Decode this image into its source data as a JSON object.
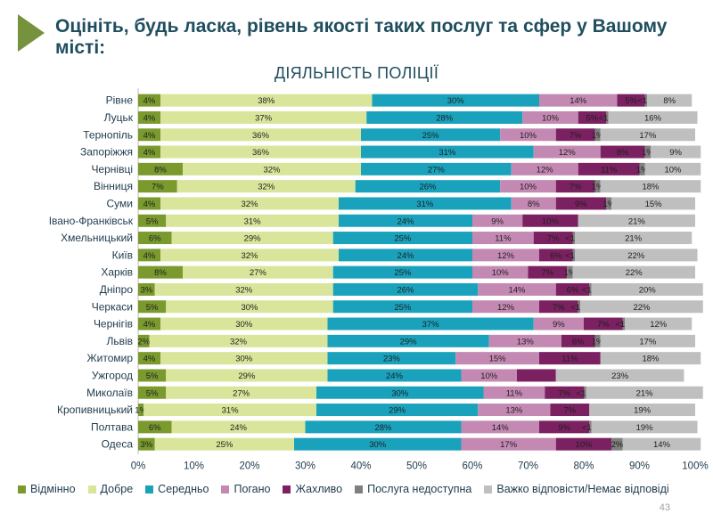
{
  "header": {
    "title": "Оцініть, будь ласка, рівень якості таких послуг та сфер у Вашому місті:",
    "subtitle": "ДІЯЛЬНІСТЬ ПОЛІЦІЇ"
  },
  "page_number": "43",
  "legend": [
    {
      "label": "Відмінно",
      "color": "#7a9a2e"
    },
    {
      "label": "Добре",
      "color": "#d9e59b"
    },
    {
      "label": "Середньо",
      "color": "#1aa2bd"
    },
    {
      "label": "Погано",
      "color": "#c489b3"
    },
    {
      "label": "Жахливо",
      "color": "#7b2161"
    },
    {
      "label": "Послуга недоступна",
      "color": "#7f7f7f"
    },
    {
      "label": "Важко відповісти/Немає відповіді",
      "color": "#bfbfbf"
    }
  ],
  "chart_data": {
    "type": "bar",
    "orientation": "horizontal-stacked-100",
    "xlim": [
      0,
      100
    ],
    "xticks": [
      "0%",
      "10%",
      "20%",
      "30%",
      "40%",
      "50%",
      "60%",
      "70%",
      "80%",
      "90%",
      "100%"
    ],
    "categories": [
      "Рівне",
      "Луцьк",
      "Тернопіль",
      "Запоріжжя",
      "Чернівці",
      "Вінниця",
      "Суми",
      "Івано-Франківськ",
      "Хмельницький",
      "Київ",
      "Харків",
      "Дніпро",
      "Черкаси",
      "Чернігів",
      "Львів",
      "Житомир",
      "Ужгород",
      "Миколаїв",
      "Кропивницький",
      "Полтава",
      "Одеса"
    ],
    "series": [
      {
        "name": "Відмінно",
        "color": "#7a9a2e",
        "values": [
          4,
          4,
          4,
          4,
          8,
          7,
          4,
          5,
          6,
          4,
          8,
          3,
          5,
          4,
          2,
          4,
          5,
          5,
          1,
          6,
          3
        ],
        "labels": [
          "4%",
          "4%",
          "4%",
          "4%",
          "8%",
          "7%",
          "4%",
          "5%",
          "6%",
          "4%",
          "8%",
          "3%",
          "5%",
          "4%",
          "2%",
          "4%",
          "5%",
          "5%",
          "1%",
          "6%",
          "3%"
        ]
      },
      {
        "name": "Добре",
        "color": "#d9e59b",
        "values": [
          38,
          37,
          36,
          36,
          32,
          32,
          32,
          31,
          29,
          32,
          27,
          32,
          30,
          30,
          32,
          30,
          29,
          27,
          31,
          24,
          25
        ],
        "labels": [
          "38%",
          "37%",
          "36%",
          "36%",
          "32%",
          "32%",
          "32%",
          "31%",
          "29%",
          "32%",
          "27%",
          "32%",
          "30%",
          "30%",
          "32%",
          "30%",
          "29%",
          "27%",
          "31%",
          "24%",
          "25%"
        ]
      },
      {
        "name": "Середньо",
        "color": "#1aa2bd",
        "values": [
          30,
          28,
          25,
          31,
          27,
          26,
          31,
          24,
          25,
          24,
          25,
          26,
          25,
          37,
          29,
          23,
          24,
          30,
          29,
          28,
          30
        ],
        "labels": [
          "30%",
          "28%",
          "25%",
          "31%",
          "27%",
          "26%",
          "31%",
          "24%",
          "25%",
          "24%",
          "25%",
          "26%",
          "25%",
          "37%",
          "29%",
          "23%",
          "24%",
          "30%",
          "29%",
          "28%",
          "30%"
        ]
      },
      {
        "name": "Погано",
        "color": "#c489b3",
        "values": [
          14,
          10,
          10,
          12,
          12,
          10,
          8,
          9,
          11,
          12,
          10,
          14,
          12,
          9,
          13,
          15,
          10,
          11,
          13,
          14,
          17
        ],
        "labels": [
          "14%",
          "10%",
          "10%",
          "12%",
          "12%",
          "10%",
          "8%",
          "9%",
          "11%",
          "12%",
          "10%",
          "14%",
          "12%",
          "9%",
          "13%",
          "15%",
          "10%",
          "11%",
          "13%",
          "14%",
          "17%"
        ]
      },
      {
        "name": "Жахливо",
        "color": "#7b2161",
        "values": [
          5,
          5,
          7,
          8,
          11,
          7,
          9,
          10,
          7,
          6,
          7,
          6,
          7,
          7,
          6,
          11,
          7,
          7,
          7,
          9,
          10
        ],
        "labels": [
          "5%",
          "5%",
          "7%",
          "8%",
          "11%",
          "7%",
          "9%",
          "10%",
          "7%",
          "6%",
          "7%",
          "6%",
          "7%",
          "7%",
          "6%",
          "11%",
          "",
          "7%",
          "7%",
          "9%",
          "10%"
        ]
      },
      {
        "name": "Послуга недоступна",
        "color": "#7f7f7f",
        "values": [
          0.4,
          0.4,
          1,
          1,
          1,
          1,
          1,
          0,
          0.4,
          0.4,
          1,
          0.4,
          0.4,
          0.4,
          1,
          0,
          0,
          0.4,
          0,
          0.4,
          2
        ],
        "labels": [
          "<1%",
          "<1%",
          "1%",
          "1%",
          "1%",
          "1%",
          "1%",
          "",
          "<1%",
          "<1%",
          "1%",
          "<1%",
          "<1%",
          "<1%",
          "1%",
          "",
          "",
          "<1%",
          "",
          "<1%",
          "2%"
        ]
      },
      {
        "name": "Важко відповісти/Немає відповіді",
        "color": "#bfbfbf",
        "values": [
          8,
          16,
          17,
          9,
          10,
          18,
          15,
          21,
          21,
          22,
          22,
          20,
          22,
          12,
          17,
          18,
          23,
          21,
          19,
          19,
          14
        ],
        "labels": [
          "8%",
          "16%",
          "17%",
          "9%",
          "10%",
          "18%",
          "15%",
          "21%",
          "21%",
          "22%",
          "22%",
          "20%",
          "22%",
          "12%",
          "17%",
          "18%",
          "23%",
          "21%",
          "19%",
          "19%",
          "14%"
        ]
      }
    ]
  }
}
